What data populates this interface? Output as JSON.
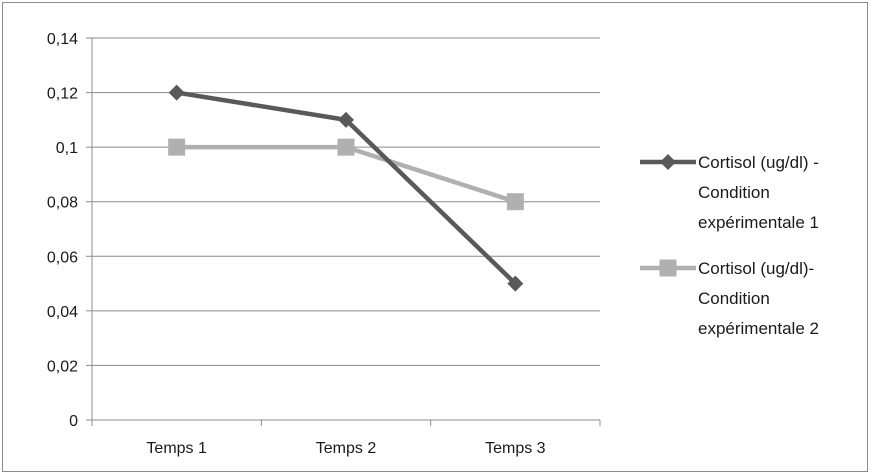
{
  "chart_data": {
    "type": "line",
    "title": "",
    "xlabel": "",
    "ylabel": "",
    "categories": [
      "Temps 1",
      "Temps 2",
      "Temps 3"
    ],
    "ylim": [
      0,
      0.14
    ],
    "y_ticks": [
      0,
      0.02,
      0.04,
      0.06,
      0.08,
      0.1,
      0.12,
      0.14
    ],
    "y_tick_labels": [
      "0",
      "0,02",
      "0,04",
      "0,06",
      "0,08",
      "0,1",
      "0,12",
      "0,14"
    ],
    "grid": true,
    "legend_position": "right",
    "series": [
      {
        "name": "Cortisol (ug/dl) - Condition expérimentale 1",
        "legend_lines": [
          "Cortisol (ug/dl) -",
          "Condition",
          "expérimentale 1"
        ],
        "values": [
          0.12,
          0.11,
          0.05
        ],
        "color": "#595959",
        "marker": "diamond"
      },
      {
        "name": "Cortisol (ug/dl)- Condition expérimentale 2",
        "legend_lines": [
          "Cortisol (ug/dl)-",
          "Condition",
          "expérimentale 2"
        ],
        "values": [
          0.1,
          0.1,
          0.08
        ],
        "color": "#b0b0b0",
        "marker": "square"
      }
    ]
  }
}
